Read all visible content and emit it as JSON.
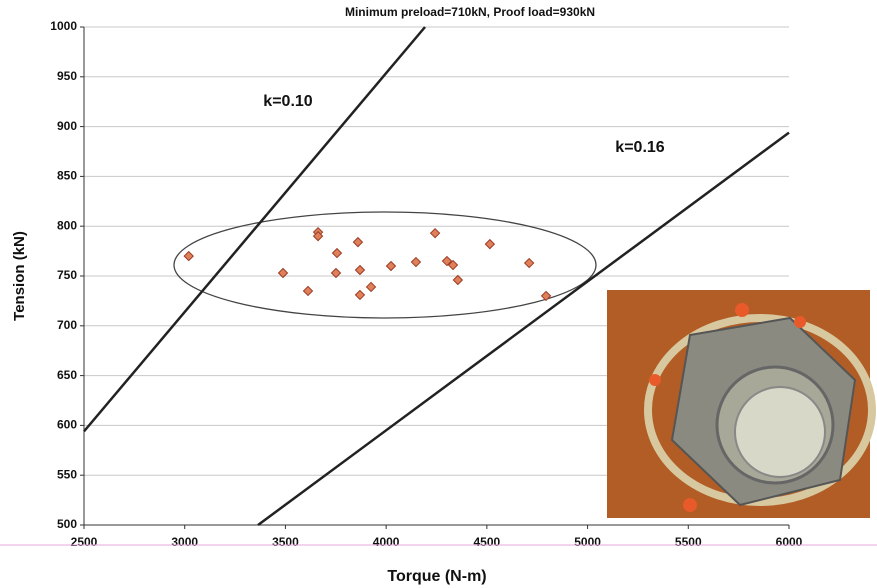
{
  "chart_data": {
    "type": "scatter",
    "subtitle": "Minimum preload=710kN, Proof load=930kN",
    "x_label": "Torque (N-m)",
    "y_label": "Tension (kN)",
    "xlim": [
      2500,
      6000
    ],
    "xticks": [
      2500,
      3000,
      3500,
      4000,
      4500,
      5000,
      5500,
      6000
    ],
    "ylim": [
      500,
      1000
    ],
    "yticks": [
      500,
      550,
      600,
      650,
      700,
      750,
      800,
      850,
      900,
      950,
      1000
    ],
    "grid": true,
    "series": [
      {
        "color": "#e0805a",
        "x": [
          3020,
          3488,
          3612,
          3662,
          3662,
          3756,
          3751,
          3860,
          3870,
          3870,
          3925,
          4024,
          4148,
          4243,
          4302,
          4332,
          4356,
          4515,
          4710,
          4794
        ],
        "values": [
          770,
          753,
          735,
          794,
          790,
          773,
          753,
          784,
          756,
          731,
          739,
          760,
          764,
          793,
          765,
          761,
          746,
          782,
          763,
          730
        ]
      }
    ],
    "lines": [
      {
        "name": "k=0.10",
        "x": [
          2500,
          4193
        ],
        "values": [
          594,
          1000
        ]
      },
      {
        "name": "k=0.16",
        "x": [
          3364,
          6000
        ],
        "values": [
          500,
          894
        ]
      }
    ]
  }
}
